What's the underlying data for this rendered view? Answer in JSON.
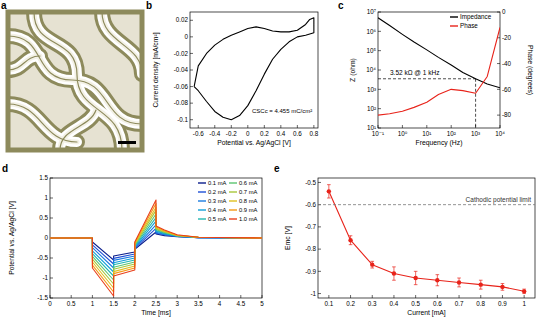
{
  "chart_data": [
    {
      "type": "image",
      "panel_label": "a"
    },
    {
      "type": "line",
      "panel_label": "b",
      "x_label": "Potential vs. Ag/AgCl [V]",
      "y_label": "Current density [mA/cm²]",
      "xlim": [
        -0.7,
        0.85
      ],
      "xticks": [
        -0.6,
        -0.4,
        -0.2,
        0,
        0.2,
        0.4,
        0.6,
        0.8
      ],
      "ylim": [
        -0.11,
        0.03
      ],
      "yticks": [
        -0.1,
        -0.08,
        -0.06,
        -0.04,
        -0.02,
        0,
        0.02
      ],
      "x": [
        -0.65,
        -0.6,
        -0.5,
        -0.4,
        -0.3,
        -0.2,
        -0.1,
        0,
        0.1,
        0.2,
        0.3,
        0.4,
        0.5,
        0.6,
        0.7,
        0.75,
        0.8,
        0.8,
        0.7,
        0.6,
        0.5,
        0.4,
        0.3,
        0.2,
        0.1,
        0,
        -0.1,
        -0.2,
        -0.3,
        -0.4,
        -0.5,
        -0.6,
        -0.65
      ],
      "series": [
        {
          "color": "#000000",
          "values": [
            -0.06,
            -0.035,
            -0.02,
            -0.01,
            -0.003,
            0.002,
            0.006,
            0.01,
            0.012,
            0.01,
            0.007,
            0.006,
            0.006,
            0.008,
            0.015,
            0.021,
            0.023,
            0.005,
            0.002,
            0,
            -0.006,
            -0.015,
            -0.027,
            -0.045,
            -0.065,
            -0.083,
            -0.095,
            -0.1,
            -0.097,
            -0.09,
            -0.078,
            -0.065,
            -0.06
          ]
        }
      ],
      "annotations": [
        {
          "text": "CSCc = 4.455 mC/cm²"
        }
      ]
    },
    {
      "type": "line",
      "panel_label": "c",
      "x_label": "Frequency (Hz)",
      "y_label": "Z (ohm)",
      "y2_label": "Phase (degrees)",
      "log": true,
      "xlim": [
        0.1,
        10000
      ],
      "xticks": [
        {
          "value": 0.1,
          "label": "10⁻¹"
        },
        {
          "value": 1,
          "label": "10⁰"
        },
        {
          "value": 10,
          "label": "10¹"
        },
        {
          "value": 100,
          "label": "10²"
        },
        {
          "value": 1000,
          "label": "10³"
        },
        {
          "value": 10000,
          "label": "10⁴"
        }
      ],
      "ylim": [
        10,
        10000000
      ],
      "yticks": [
        {
          "value": 10,
          "label": "10¹"
        },
        {
          "value": 100,
          "label": "10²"
        },
        {
          "value": 1000,
          "label": "10³"
        },
        {
          "value": 10000,
          "label": "10⁴"
        },
        {
          "value": 100000,
          "label": "10⁵"
        },
        {
          "value": 1000000,
          "label": "10⁶"
        },
        {
          "value": 10000000,
          "label": "10⁷"
        }
      ],
      "y2lim": [
        -90,
        0
      ],
      "y2ticks": [
        -80,
        -60,
        -40,
        -20,
        0
      ],
      "x": [
        0.1,
        0.3,
        1,
        3,
        10,
        30,
        100,
        300,
        1000,
        3000,
        10000
      ],
      "series": [
        {
          "name": "Impedance",
          "color": "#000000",
          "values": [
            5000000,
            2000000,
            700000,
            280000,
            110000,
            45000,
            18000,
            7500,
            3520,
            1900,
            1200
          ]
        },
        {
          "name": "Phase",
          "color": "#e8231a",
          "axis": "y2",
          "values": [
            -80,
            -79,
            -77,
            -74,
            -70,
            -64,
            -60,
            -61,
            -63,
            -50,
            -12
          ]
        }
      ],
      "legend": "upper right",
      "annotations": [
        {
          "text": "3.52 kΩ @ 1 kHz",
          "x": 1000,
          "y": 3520
        }
      ]
    },
    {
      "type": "line",
      "panel_label": "d",
      "x_label": "Time [ms]",
      "y_label": "Potential vs. Ag/AgCl [V]",
      "xlim": [
        0,
        5
      ],
      "xticks": [
        0,
        0.5,
        1,
        1.5,
        2,
        2.5,
        3,
        3.5,
        4,
        4.5,
        5
      ],
      "ylim": [
        -1.5,
        1.5
      ],
      "yticks": [
        -1.5,
        -1,
        -0.5,
        0,
        0.5,
        1,
        1.5
      ],
      "x": [
        0,
        1,
        1,
        1.5,
        1.5,
        2,
        2,
        2.5,
        2.5,
        2.7,
        3,
        3.5,
        5
      ],
      "series": [
        {
          "name": "0.1 mA",
          "color": "#0b1e8c",
          "values": [
            0,
            0,
            -0.1,
            -0.55,
            -0.45,
            -0.35,
            -0.28,
            0.15,
            0.1,
            0.06,
            0.03,
            0.01,
            0
          ]
        },
        {
          "name": "0.2 mA",
          "color": "#1f4fd6",
          "values": [
            0,
            0,
            -0.17,
            -0.65,
            -0.51,
            -0.4,
            -0.26,
            0.24,
            0.12,
            0.08,
            0.04,
            0.01,
            0
          ]
        },
        {
          "name": "0.3 mA",
          "color": "#1a7be0",
          "values": [
            0,
            0,
            -0.24,
            -0.75,
            -0.56,
            -0.45,
            -0.24,
            0.33,
            0.14,
            0.09,
            0.04,
            0.01,
            0
          ]
        },
        {
          "name": "0.4 mA",
          "color": "#12a0d8",
          "values": [
            0,
            0,
            -0.32,
            -0.85,
            -0.62,
            -0.5,
            -0.22,
            0.42,
            0.17,
            0.11,
            0.05,
            0.01,
            0
          ]
        },
        {
          "name": "0.5 mA",
          "color": "#22b8b0",
          "values": [
            0,
            0,
            -0.39,
            -0.95,
            -0.67,
            -0.55,
            -0.2,
            0.51,
            0.19,
            0.12,
            0.05,
            0.02,
            0
          ]
        },
        {
          "name": "0.6 mA",
          "color": "#5cc470",
          "values": [
            0,
            0,
            -0.46,
            -1.05,
            -0.73,
            -0.6,
            -0.18,
            0.6,
            0.21,
            0.14,
            0.06,
            0.02,
            0
          ]
        },
        {
          "name": "0.7 mA",
          "color": "#a8c83a",
          "values": [
            0,
            0,
            -0.53,
            -1.15,
            -0.78,
            -0.65,
            -0.16,
            0.69,
            0.23,
            0.15,
            0.06,
            0.02,
            0
          ]
        },
        {
          "name": "0.8 mA",
          "color": "#e0c020",
          "values": [
            0,
            0,
            -0.6,
            -1.25,
            -0.84,
            -0.7,
            -0.14,
            0.77,
            0.25,
            0.17,
            0.07,
            0.02,
            0
          ]
        },
        {
          "name": "0.9 mA",
          "color": "#f59a15",
          "values": [
            0,
            0,
            -0.68,
            -1.35,
            -0.89,
            -0.75,
            -0.12,
            0.86,
            0.28,
            0.18,
            0.07,
            0.02,
            0
          ]
        },
        {
          "name": "1.0 mA",
          "color": "#e8401a",
          "values": [
            0,
            0,
            -0.75,
            -1.45,
            -0.95,
            -0.8,
            -0.1,
            0.95,
            0.3,
            0.2,
            0.08,
            0.02,
            0
          ]
        }
      ],
      "legend": "upper right"
    },
    {
      "type": "line",
      "panel_label": "e",
      "x_label": "Current [mA]",
      "y_label": "Emc [V]",
      "xlim": [
        0.05,
        1.05
      ],
      "xticks": [
        0.1,
        0.2,
        0.3,
        0.4,
        0.5,
        0.6,
        0.7,
        0.8,
        0.9,
        1
      ],
      "ylim": [
        -1.02,
        -0.48
      ],
      "yticks": [
        -1,
        -0.9,
        -0.8,
        -0.7,
        -0.6,
        -0.5
      ],
      "x": [
        0.1,
        0.2,
        0.3,
        0.4,
        0.5,
        0.6,
        0.7,
        0.8,
        0.9,
        1
      ],
      "series": [
        {
          "color": "#e8231a",
          "marker": "circle",
          "values": [
            -0.54,
            -0.76,
            -0.87,
            -0.91,
            -0.93,
            -0.94,
            -0.95,
            -0.96,
            -0.97,
            -0.99
          ],
          "errors": [
            0.03,
            0.02,
            0.015,
            0.03,
            0.03,
            0.025,
            0.02,
            0.02,
            0.015,
            0.01
          ]
        }
      ],
      "annotations": [
        {
          "text": "Cathodic potential limit",
          "y": -0.6
        }
      ]
    }
  ]
}
